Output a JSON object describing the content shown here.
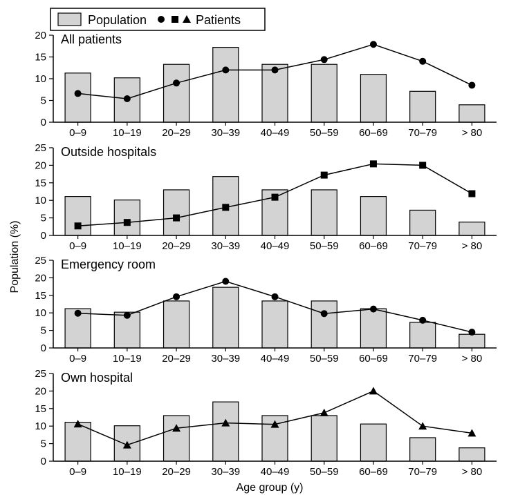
{
  "legend": {
    "population_label": "Population",
    "patients_label": "Patients"
  },
  "ylabel": "Population (%)",
  "xlabel": "Age group (y)",
  "colors": {
    "bar_fill": "#d3d3d3",
    "stroke": "#000000"
  },
  "chart_data": [
    {
      "type": "bar",
      "title": "All patients",
      "marker": "circle",
      "categories": [
        "0–9",
        "10–19",
        "20–29",
        "30–39",
        "40–49",
        "50–59",
        "60–69",
        "70–79",
        "> 80"
      ],
      "ylim": [
        0,
        20
      ],
      "yticks": [
        0,
        5,
        10,
        15,
        20
      ],
      "series": [
        {
          "name": "Population",
          "kind": "bar",
          "values": [
            11.3,
            10.2,
            13.3,
            17.2,
            13.3,
            13.3,
            11.0,
            7.1,
            4.0
          ]
        },
        {
          "name": "Patients",
          "kind": "line",
          "values": [
            6.6,
            5.4,
            9.0,
            12.0,
            12.0,
            14.4,
            17.9,
            14.0,
            8.5
          ]
        }
      ]
    },
    {
      "type": "bar",
      "title": "Outside hospitals",
      "marker": "square",
      "categories": [
        "0–9",
        "10–19",
        "20–29",
        "30–39",
        "40–49",
        "50–59",
        "60–69",
        "70–79",
        "> 80"
      ],
      "ylim": [
        0,
        25
      ],
      "yticks": [
        0,
        5,
        10,
        15,
        20,
        25
      ],
      "series": [
        {
          "name": "Population",
          "kind": "bar",
          "values": [
            11.1,
            10.1,
            13.0,
            16.8,
            13.0,
            13.0,
            11.1,
            7.2,
            3.8
          ]
        },
        {
          "name": "Patients",
          "kind": "line",
          "values": [
            2.7,
            3.7,
            5.0,
            8.0,
            10.9,
            17.2,
            20.4,
            20.0,
            11.9
          ]
        }
      ]
    },
    {
      "type": "bar",
      "title": "Emergency room",
      "marker": "circle",
      "categories": [
        "0–9",
        "10–19",
        "20–29",
        "30–39",
        "40–49",
        "50–59",
        "60–69",
        "70–79",
        "> 80"
      ],
      "ylim": [
        0,
        25
      ],
      "yticks": [
        0,
        5,
        10,
        15,
        20,
        25
      ],
      "series": [
        {
          "name": "Population",
          "kind": "bar",
          "values": [
            11.2,
            10.2,
            13.4,
            17.3,
            13.4,
            13.4,
            11.2,
            7.3,
            3.9
          ]
        },
        {
          "name": "Patients",
          "kind": "line",
          "values": [
            9.9,
            9.3,
            14.6,
            19.0,
            14.6,
            9.8,
            11.1,
            7.9,
            4.5
          ]
        }
      ]
    },
    {
      "type": "bar",
      "title": "Own hospital",
      "marker": "triangle",
      "categories": [
        "0–9",
        "10–19",
        "20–29",
        "30–39",
        "40–49",
        "50–59",
        "60–69",
        "70–79",
        "> 80"
      ],
      "ylim": [
        0,
        25
      ],
      "yticks": [
        0,
        5,
        10,
        15,
        20,
        25
      ],
      "series": [
        {
          "name": "Population",
          "kind": "bar",
          "values": [
            11.1,
            10.1,
            13.0,
            16.9,
            13.0,
            13.0,
            10.6,
            6.7,
            3.8
          ]
        },
        {
          "name": "Patients",
          "kind": "line",
          "values": [
            10.6,
            4.6,
            9.4,
            10.9,
            10.5,
            13.8,
            20.0,
            10.0,
            8.0
          ]
        }
      ]
    }
  ]
}
